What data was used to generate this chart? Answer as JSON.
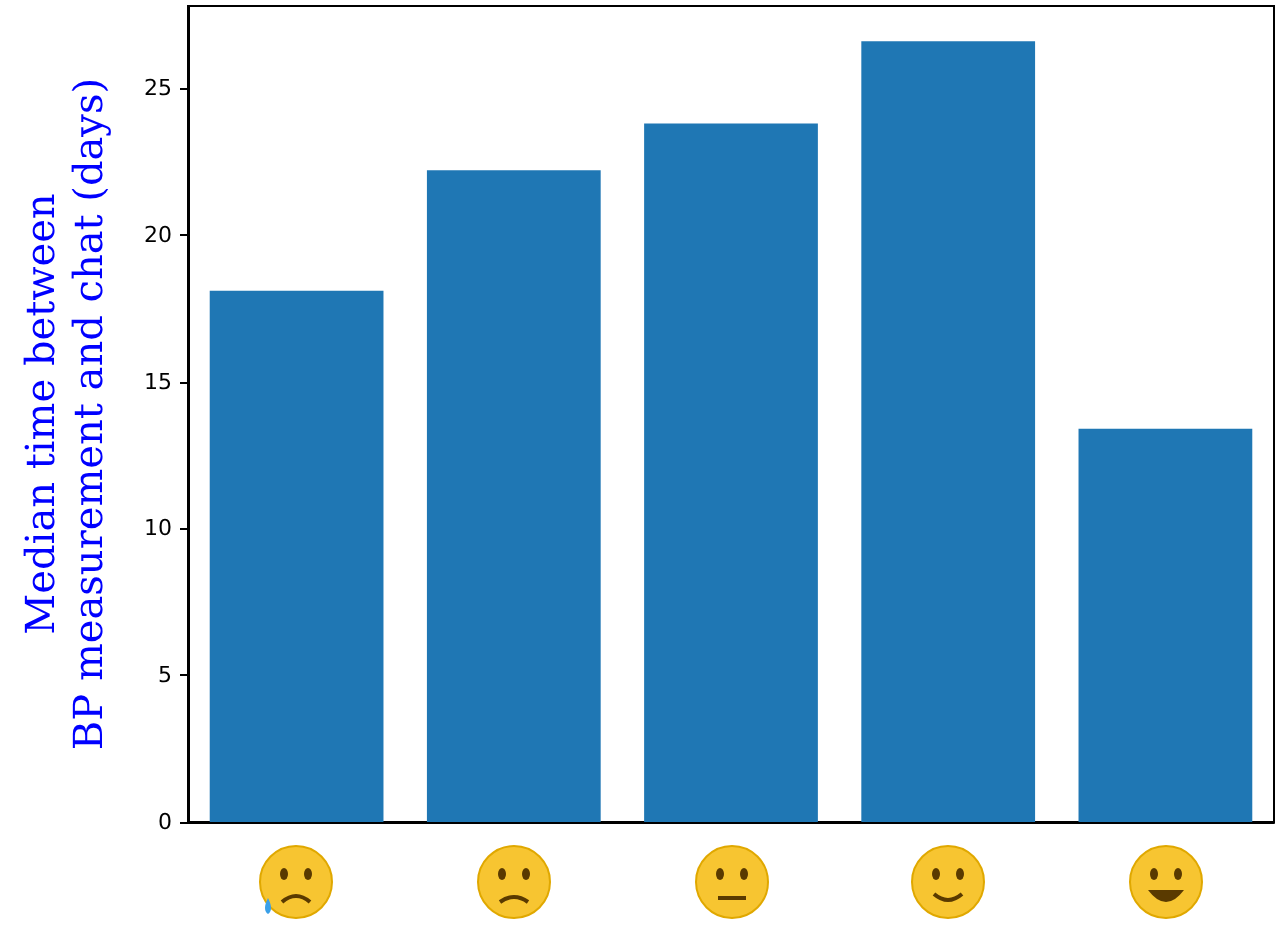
{
  "chart_data": {
    "type": "bar",
    "ylabel": "Median time between\nBP measurement and chat (days)",
    "categories": [
      null,
      null,
      null,
      null,
      null
    ],
    "values": [
      18.1,
      22.2,
      23.8,
      26.6,
      13.4
    ],
    "color": "#1f77b4",
    "ylim": [
      0,
      27.8
    ],
    "yticks": [
      0,
      5,
      10,
      15,
      20,
      25
    ],
    "grid": false
  }
}
